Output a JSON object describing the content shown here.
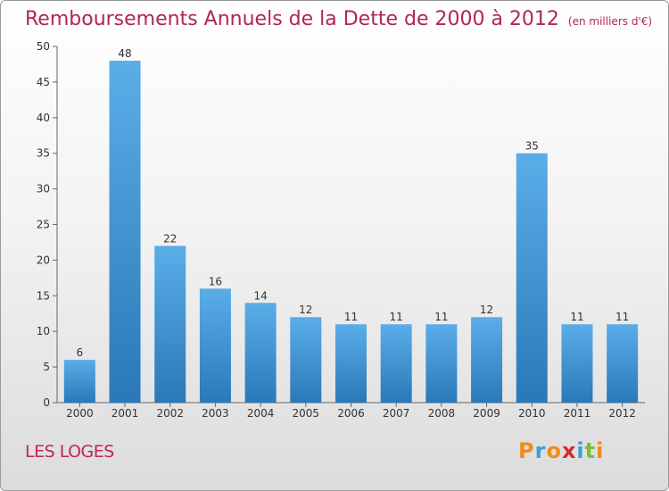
{
  "header": {
    "title": "Remboursements Annuels de la Dette de 2000 à 2012",
    "unit": "(en milliers d'€)"
  },
  "footer": {
    "commune": "LES LOGES",
    "logo_letters": [
      "P",
      "r",
      "o",
      "x",
      "i",
      "t",
      "i"
    ],
    "logo_colors": [
      "#f08c1e",
      "#3aa0d8",
      "#f08c1e",
      "#d22d2d",
      "#3aa0d8",
      "#7bbf3a",
      "#f08c1e"
    ]
  },
  "chart_data": {
    "type": "bar",
    "title": "Remboursements Annuels de la Dette de 2000 à 2012",
    "subtitle": "(en milliers d'€)",
    "categories": [
      "2000",
      "2001",
      "2002",
      "2003",
      "2004",
      "2005",
      "2006",
      "2007",
      "2008",
      "2009",
      "2010",
      "2011",
      "2012"
    ],
    "values": [
      6,
      48,
      22,
      16,
      14,
      12,
      11,
      11,
      11,
      12,
      35,
      11,
      11
    ],
    "ylim": [
      0,
      50
    ],
    "yticks": [
      0,
      5,
      10,
      15,
      20,
      25,
      30,
      35,
      40,
      45,
      50
    ],
    "xlabel": "",
    "ylabel": "",
    "grid": false,
    "bar_color_top": "#5aaee8",
    "bar_color_bottom": "#2a78b8"
  }
}
